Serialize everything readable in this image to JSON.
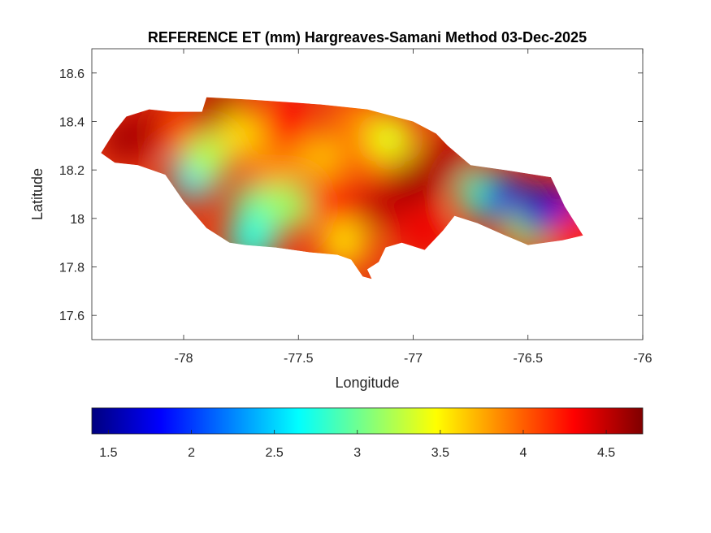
{
  "chart_data": {
    "type": "heatmap",
    "title": "REFERENCE ET (mm) Hargreaves-Samani Method  03-Dec-2025",
    "xlabel": "Longitude",
    "ylabel": "Latitude",
    "xlim": [
      -78.4,
      -76
    ],
    "ylim": [
      17.5,
      18.7
    ],
    "x_ticks": [
      -78,
      -77.5,
      -77,
      -76.5,
      -76
    ],
    "x_tick_labels": [
      "-78",
      "-77.5",
      "-77",
      "-76.5",
      "-76"
    ],
    "y_ticks": [
      17.6,
      17.8,
      18,
      18.2,
      18.4,
      18.6
    ],
    "y_tick_labels": [
      "17.6",
      "17.8",
      "18",
      "18.2",
      "18.4",
      "18.6"
    ],
    "grid": false,
    "colormap": "jet",
    "colorbar": {
      "location": "bottom",
      "range": [
        1.4,
        4.72
      ],
      "ticks": [
        1.5,
        2,
        2.5,
        3,
        3.5,
        4,
        4.5
      ],
      "tick_labels": [
        "1.5",
        "2",
        "2.5",
        "3",
        "3.5",
        "4",
        "4.5"
      ]
    },
    "region_outline": [
      [
        -78.36,
        18.27
      ],
      [
        -78.3,
        18.36
      ],
      [
        -78.25,
        18.42
      ],
      [
        -78.15,
        18.45
      ],
      [
        -78.05,
        18.44
      ],
      [
        -77.92,
        18.44
      ],
      [
        -77.9,
        18.5
      ],
      [
        -77.7,
        18.49
      ],
      [
        -77.4,
        18.47
      ],
      [
        -77.2,
        18.45
      ],
      [
        -77.0,
        18.4
      ],
      [
        -76.9,
        18.35
      ],
      [
        -76.85,
        18.3
      ],
      [
        -76.75,
        18.22
      ],
      [
        -76.6,
        18.2
      ],
      [
        -76.4,
        18.17
      ],
      [
        -76.34,
        18.05
      ],
      [
        -76.26,
        17.93
      ],
      [
        -76.35,
        17.91
      ],
      [
        -76.5,
        17.89
      ],
      [
        -76.6,
        17.93
      ],
      [
        -76.72,
        17.98
      ],
      [
        -76.82,
        18.01
      ],
      [
        -76.87,
        17.95
      ],
      [
        -76.95,
        17.87
      ],
      [
        -77.05,
        17.9
      ],
      [
        -77.12,
        17.88
      ],
      [
        -77.15,
        17.82
      ],
      [
        -77.2,
        17.79
      ],
      [
        -77.18,
        17.75
      ],
      [
        -77.22,
        17.76
      ],
      [
        -77.27,
        17.83
      ],
      [
        -77.33,
        17.85
      ],
      [
        -77.45,
        17.86
      ],
      [
        -77.6,
        17.88
      ],
      [
        -77.73,
        17.89
      ],
      [
        -77.8,
        17.9
      ],
      [
        -77.9,
        17.96
      ],
      [
        -78.0,
        18.07
      ],
      [
        -78.08,
        18.18
      ],
      [
        -78.2,
        18.22
      ],
      [
        -78.3,
        18.23
      ],
      [
        -78.36,
        18.27
      ]
    ],
    "field_points": [
      {
        "lon": -78.25,
        "lat": 18.33,
        "value": 4.6
      },
      {
        "lon": -78.12,
        "lat": 18.38,
        "value": 4.55
      },
      {
        "lon": -78.0,
        "lat": 18.36,
        "value": 4.1
      },
      {
        "lon": -77.95,
        "lat": 18.18,
        "value": 2.55
      },
      {
        "lon": -77.9,
        "lat": 18.25,
        "value": 3.2
      },
      {
        "lon": -77.85,
        "lat": 18.45,
        "value": 4.6
      },
      {
        "lon": -77.75,
        "lat": 18.35,
        "value": 3.6
      },
      {
        "lon": -77.68,
        "lat": 18.05,
        "value": 3.0
      },
      {
        "lon": -77.7,
        "lat": 17.92,
        "value": 2.75
      },
      {
        "lon": -77.6,
        "lat": 18.2,
        "value": 3.85
      },
      {
        "lon": -77.55,
        "lat": 18.05,
        "value": 3.15
      },
      {
        "lon": -77.55,
        "lat": 18.4,
        "value": 4.3
      },
      {
        "lon": -77.4,
        "lat": 18.25,
        "value": 3.7
      },
      {
        "lon": -77.35,
        "lat": 18.05,
        "value": 4.3
      },
      {
        "lon": -77.3,
        "lat": 17.9,
        "value": 3.6
      },
      {
        "lon": -77.25,
        "lat": 18.4,
        "value": 3.9
      },
      {
        "lon": -77.2,
        "lat": 18.25,
        "value": 4.0
      },
      {
        "lon": -77.15,
        "lat": 18.05,
        "value": 4.5
      },
      {
        "lon": -77.1,
        "lat": 18.33,
        "value": 3.4
      },
      {
        "lon": -77.0,
        "lat": 18.15,
        "value": 4.6
      },
      {
        "lon": -76.95,
        "lat": 17.95,
        "value": 4.35
      },
      {
        "lon": -76.85,
        "lat": 18.25,
        "value": 4.55
      },
      {
        "lon": -76.7,
        "lat": 18.1,
        "value": 2.9
      },
      {
        "lon": -76.6,
        "lat": 18.07,
        "value": 1.7
      },
      {
        "lon": -76.5,
        "lat": 17.98,
        "value": 3.2
      },
      {
        "lon": -76.45,
        "lat": 18.03,
        "value": 1.6
      },
      {
        "lon": -76.35,
        "lat": 18.02,
        "value": 1.7
      },
      {
        "lon": -76.3,
        "lat": 17.93,
        "value": 4.2
      }
    ]
  }
}
